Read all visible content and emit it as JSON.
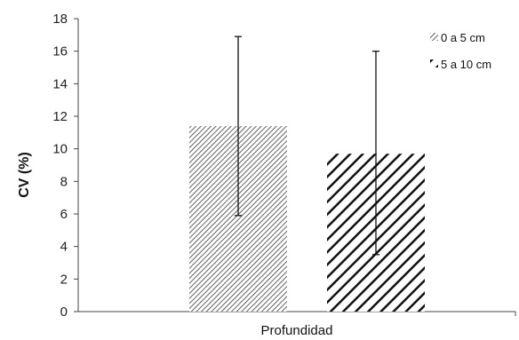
{
  "chart_data": {
    "type": "bar",
    "xlabel": "Profundidad",
    "ylabel": "CV (%)",
    "ylim": [
      0,
      18
    ],
    "yticks": [
      0,
      2,
      4,
      6,
      8,
      10,
      12,
      14,
      16,
      18
    ],
    "grid": false,
    "legend_position": "top-right",
    "series": [
      {
        "name": "0 a 5 cm",
        "value": 11.4,
        "error_low": 5.9,
        "error_high": 16.9,
        "pattern": "fine-hatch"
      },
      {
        "name": "5 a 10 cm",
        "value": 9.7,
        "error_low": 3.5,
        "error_high": 16.0,
        "pattern": "bold-hatch"
      }
    ]
  }
}
